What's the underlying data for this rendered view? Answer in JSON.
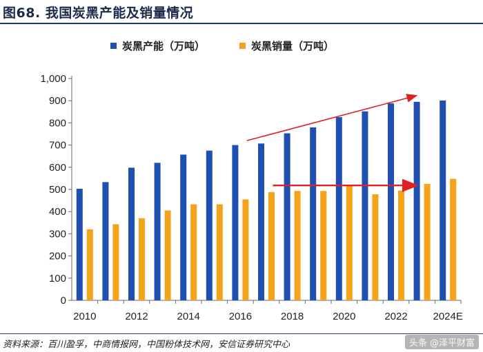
{
  "title": "图68. 我国炭黑产能及销量情况",
  "legend": {
    "series1_label": "炭黑产能（万吨）",
    "series2_label": "炭黑销量（万吨）"
  },
  "colors": {
    "capacity": "#1f4fb0",
    "sales": "#f4a31b",
    "arrow": "#e02020",
    "grid_line": "#888888"
  },
  "source": "资料来源：百川盈孚，中商情报网，中国粉体技术网，安信证券研究中心",
  "watermark": "头条 @泽平财富",
  "chart_data": {
    "type": "bar",
    "title": "我国炭黑产能及销量情况",
    "categories": [
      "2010",
      "2011",
      "2012",
      "2013",
      "2014",
      "2015",
      "2016",
      "2017",
      "2018",
      "2019",
      "2020",
      "2021",
      "2022",
      "2023",
      "2024E"
    ],
    "tick_labels": [
      "2010",
      "2012",
      "2014",
      "2016",
      "2018",
      "2020",
      "2022",
      "2024E"
    ],
    "series": [
      {
        "name": "炭黑产能（万吨）",
        "values": [
          503,
          533,
          598,
          620,
          657,
          675,
          700,
          707,
          753,
          780,
          826,
          852,
          888,
          895,
          901
        ]
      },
      {
        "name": "炭黑销量（万吨）",
        "values": [
          320,
          343,
          370,
          405,
          433,
          433,
          455,
          488,
          493,
          493,
          520,
          478,
          495,
          525,
          548
        ]
      }
    ],
    "y_ticks": [
      "0",
      "100",
      "200",
      "300",
      "400",
      "500",
      "600",
      "700",
      "800",
      "900",
      "1,000"
    ],
    "ylim": [
      0,
      1000
    ],
    "xlabel": "",
    "ylabel": "",
    "annotations": [
      {
        "type": "arrow",
        "from": {
          "x": "2016",
          "y": 720
        },
        "to": {
          "x": "2023",
          "y": 922
        }
      },
      {
        "type": "arrow",
        "from": {
          "x": "2017",
          "y": 518
        },
        "to": {
          "x": "2023",
          "y": 518
        }
      }
    ]
  }
}
